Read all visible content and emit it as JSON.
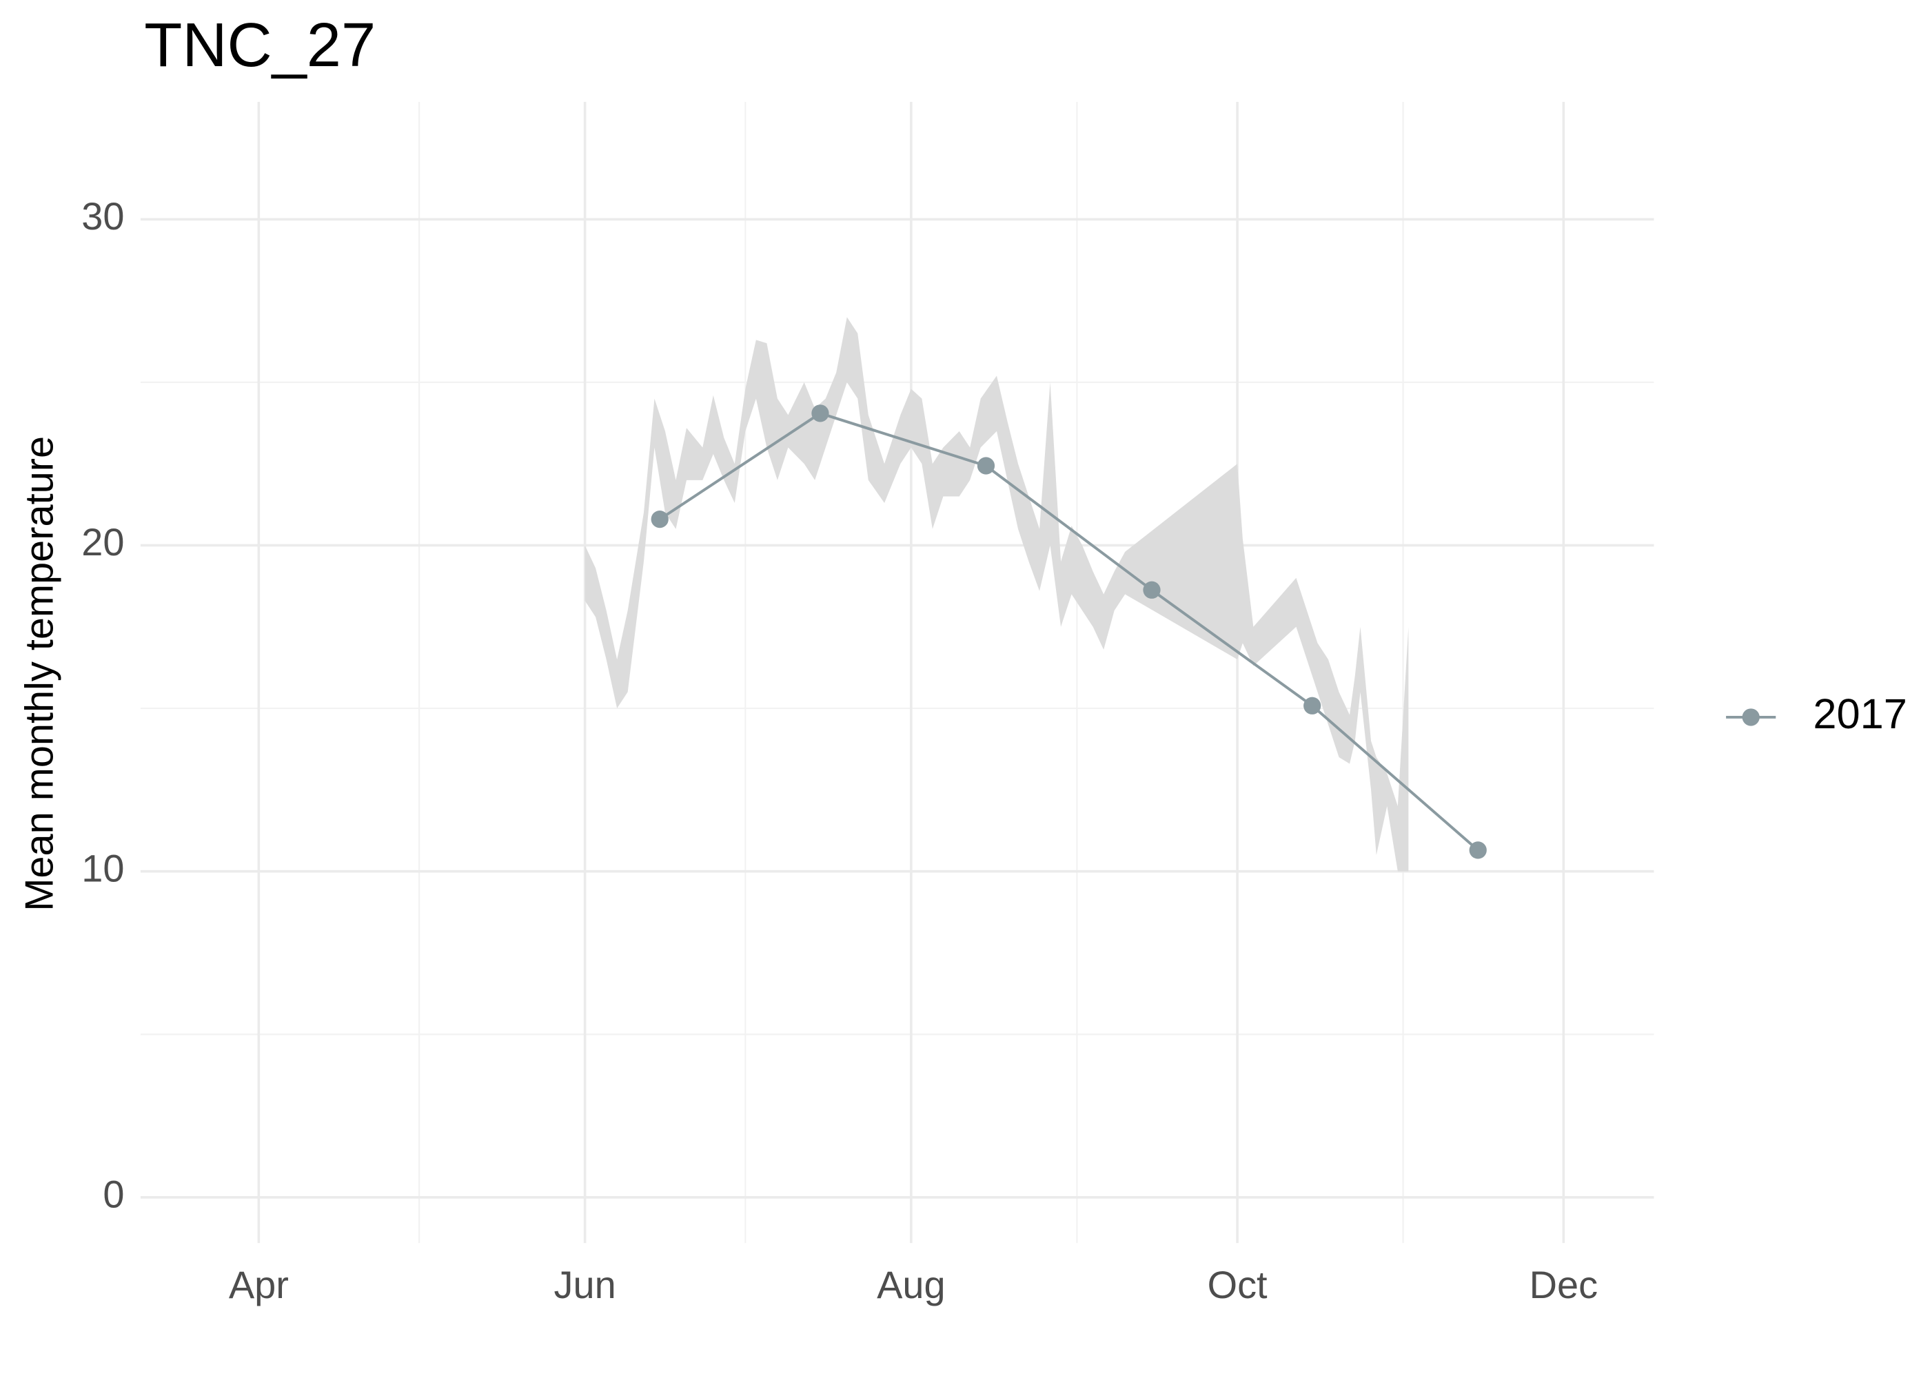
{
  "chart_data": {
    "type": "line",
    "title": "TNC_27",
    "y_label": "Mean monthly temperature",
    "xlim": [
      68.9,
      351.9
    ],
    "xticks": [
      {
        "value": 91,
        "label": "Apr"
      },
      {
        "value": 152,
        "label": "Jun"
      },
      {
        "value": 213,
        "label": "Aug"
      },
      {
        "value": 274,
        "label": "Oct"
      },
      {
        "value": 335,
        "label": "Dec"
      }
    ],
    "x_minor_ticks": [
      121,
      182,
      244,
      305
    ],
    "ylim": [
      -1.4,
      33.6
    ],
    "yticks": [
      0,
      10,
      20,
      30
    ],
    "y_minor_ticks": [
      5,
      15,
      25
    ],
    "grid": true,
    "legend": "right",
    "series": [
      {
        "name": "2017",
        "color": "#8a9aa0",
        "x": [
          166,
          196,
          227,
          258,
          288,
          319
        ],
        "values": [
          20.8,
          24.05,
          22.44,
          18.63,
          15.08,
          10.65
        ]
      }
    ],
    "ribbon": {
      "color": "#dcdcdc",
      "x": [
        152,
        154,
        156,
        158,
        160,
        163,
        165,
        167,
        169,
        171,
        174,
        176,
        178,
        180,
        182,
        184,
        186,
        188,
        190,
        193,
        195,
        197,
        199,
        201,
        203,
        205,
        208,
        211,
        213,
        215,
        217,
        219,
        222,
        224,
        226,
        229,
        231,
        233,
        235,
        237,
        239,
        241,
        243,
        245,
        247,
        249,
        251,
        253,
        274,
        275,
        277,
        285,
        287,
        289,
        291,
        293,
        295,
        296,
        297,
        299,
        300,
        302,
        304,
        306
      ],
      "low": [
        18.3,
        17.8,
        16.5,
        15.0,
        15.5,
        19.5,
        23.0,
        21.0,
        20.5,
        22.0,
        22.0,
        22.8,
        22.0,
        21.3,
        23.5,
        24.5,
        23.0,
        22.0,
        23.0,
        22.5,
        22.0,
        23.0,
        24.0,
        25.0,
        24.5,
        22.0,
        21.3,
        22.5,
        23.0,
        22.5,
        20.5,
        21.5,
        21.5,
        22.0,
        23.0,
        23.5,
        22.0,
        20.5,
        19.5,
        18.6,
        20.0,
        17.5,
        18.5,
        18.0,
        17.5,
        16.8,
        18.0,
        18.5,
        16.5,
        17.0,
        16.3,
        17.5,
        16.5,
        15.5,
        14.5,
        13.5,
        13.3,
        14.0,
        15.5,
        12.5,
        10.5,
        12.0,
        10.0,
        10.0
      ],
      "high": [
        20.0,
        19.3,
        18.0,
        16.5,
        18.0,
        21.0,
        24.5,
        23.5,
        22.0,
        23.6,
        23.0,
        24.6,
        23.3,
        22.5,
        24.8,
        26.3,
        26.2,
        24.5,
        24.0,
        25.0,
        24.2,
        24.5,
        25.3,
        27.0,
        26.5,
        24.0,
        22.5,
        24.0,
        24.8,
        24.5,
        22.5,
        23.0,
        23.5,
        23.0,
        24.5,
        25.2,
        23.8,
        22.5,
        21.5,
        20.5,
        25.0,
        19.5,
        20.6,
        20.0,
        19.2,
        18.5,
        19.2,
        19.8,
        22.5,
        20.2,
        17.5,
        19.0,
        18.0,
        17.0,
        16.5,
        15.5,
        14.8,
        16.0,
        17.5,
        14.0,
        13.5,
        13.0,
        12.0,
        17.5
      ]
    }
  }
}
